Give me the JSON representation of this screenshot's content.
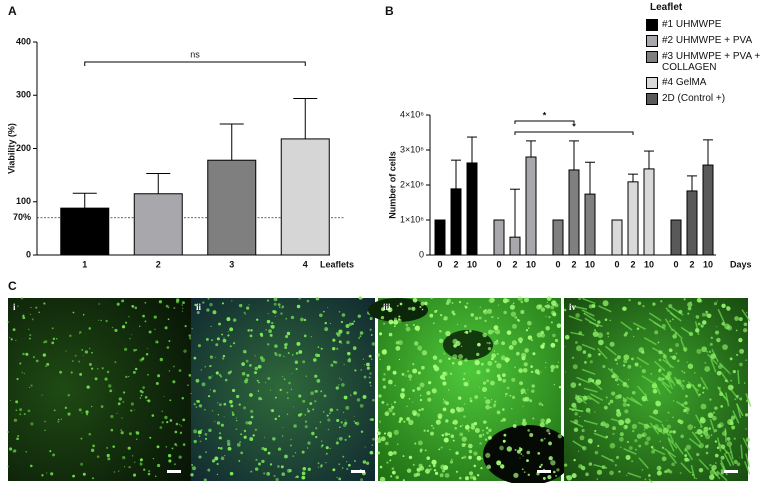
{
  "chart_data": [
    {
      "type": "bar",
      "panel": "A",
      "y_label": "Viability (%)",
      "x_label": "Leaflets",
      "categories": [
        "1",
        "2",
        "3",
        "4"
      ],
      "values": [
        88,
        115,
        178,
        218
      ],
      "errors": [
        28,
        38,
        68,
        76
      ],
      "colors": [
        "#000000",
        "#a8a8ac",
        "#7f7f7f",
        "#d6d6d6"
      ],
      "ylim": [
        0,
        400
      ],
      "yticks": [
        0,
        100,
        200,
        300,
        400
      ],
      "reference_line": {
        "value": 70,
        "label": "70%"
      },
      "annotation": "ns"
    },
    {
      "type": "grouped_bar",
      "panel": "B",
      "y_label": "Number of cells",
      "x_label": "Days",
      "legend_title": "Leaflet",
      "categories": [
        "0",
        "2",
        "10"
      ],
      "series": [
        {
          "name": "#1 UHMWPE",
          "color": "#000000",
          "values": [
            1000000,
            1890000,
            2630000
          ],
          "errors": [
            0,
            820000,
            740000
          ]
        },
        {
          "name": "#2 UHMWPE + PVA",
          "color": "#a8a8ac",
          "values": [
            1000000,
            510000,
            2800000
          ],
          "errors": [
            0,
            1370000,
            460000
          ]
        },
        {
          "name": "#3 UHMWPE + PVA + COLLAGEN",
          "color": "#7f7f7f",
          "values": [
            1000000,
            2430000,
            1740000
          ],
          "errors": [
            0,
            830000,
            910000
          ]
        },
        {
          "name": "#4 GelMA",
          "color": "#d9d9d9",
          "values": [
            1000000,
            2090000,
            2460000
          ],
          "errors": [
            0,
            220000,
            510000
          ]
        },
        {
          "name": "2D (Control +)",
          "color": "#595959",
          "values": [
            1000000,
            1830000,
            2570000
          ],
          "errors": [
            0,
            430000,
            720000
          ]
        }
      ],
      "ylim": [
        0,
        4000000
      ],
      "yticks": [
        0,
        {
          "value": 1000000,
          "label": "1×10⁶"
        },
        {
          "value": 2000000,
          "label": "2×10⁶"
        },
        {
          "value": 3000000,
          "label": "3×10⁶"
        },
        {
          "value": 4000000,
          "label": "4×10⁶"
        }
      ],
      "annotations": [
        "*",
        "*"
      ]
    }
  ],
  "figure_c": {
    "panel": "C",
    "images": [
      {
        "label": "i"
      },
      {
        "label": "ii"
      },
      {
        "label": "iii"
      },
      {
        "label": "iv"
      }
    ]
  }
}
